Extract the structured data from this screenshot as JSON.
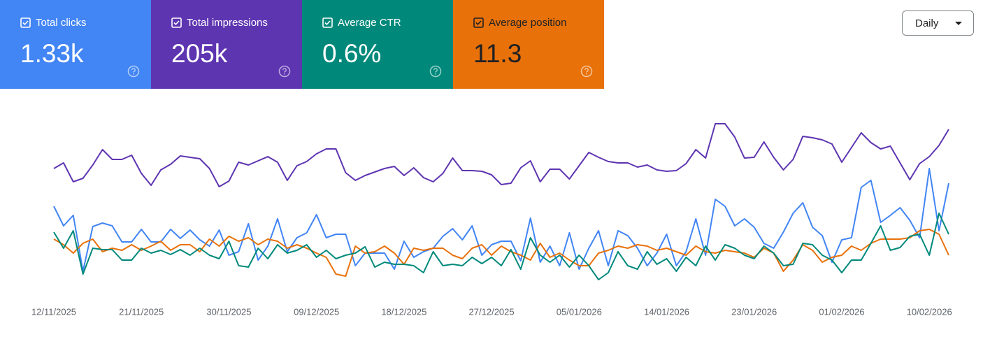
{
  "metrics": [
    {
      "label": "Total clicks",
      "value": "1.33k"
    },
    {
      "label": "Total impressions",
      "value": "205k"
    },
    {
      "label": "Average CTR",
      "value": "0.6%"
    },
    {
      "label": "Average position",
      "value": "11.3"
    }
  ],
  "range_selector": "Daily",
  "chart_data": {
    "type": "line",
    "categories": [
      "12/11/2025",
      null,
      null,
      null,
      null,
      null,
      null,
      null,
      null,
      "21/11/2025",
      null,
      null,
      null,
      null,
      null,
      null,
      null,
      null,
      "30/11/2025",
      null,
      null,
      null,
      null,
      null,
      null,
      null,
      null,
      "09/12/2025",
      null,
      null,
      null,
      null,
      null,
      null,
      null,
      null,
      "18/12/2025",
      null,
      null,
      null,
      null,
      null,
      null,
      null,
      null,
      "27/12/2025",
      null,
      null,
      null,
      null,
      null,
      null,
      null,
      null,
      "05/01/2026",
      null,
      null,
      null,
      null,
      null,
      null,
      null,
      null,
      "14/01/2026",
      null,
      null,
      null,
      null,
      null,
      null,
      null,
      null,
      "23/01/2026",
      null,
      null,
      null,
      null,
      null,
      null,
      null,
      null,
      "01/02/2026",
      null,
      null,
      null,
      null,
      null,
      null,
      null,
      null,
      "10/02/2026",
      null,
      null
    ],
    "ylim": [
      0,
      270
    ],
    "series": [
      {
        "name": "Total impressions",
        "color": "#5e35b1",
        "values": [
          179,
          187,
          160,
          165,
          184,
          206,
          192,
          192,
          198,
          172,
          155,
          177,
          185,
          197,
          195,
          193,
          179,
          153,
          161,
          188,
          184,
          190,
          196,
          188,
          162,
          183,
          189,
          200,
          207,
          207,
          173,
          162,
          169,
          174,
          179,
          182,
          169,
          180,
          166,
          160,
          172,
          194,
          176,
          176,
          175,
          170,
          156,
          158,
          180,
          190,
          160,
          178,
          178,
          164,
          183,
          202,
          195,
          189,
          187,
          187,
          181,
          184,
          177,
          175,
          176,
          186,
          206,
          194,
          243,
          243,
          224,
          194,
          195,
          217,
          195,
          177,
          192,
          225,
          223,
          220,
          214,
          188,
          209,
          230,
          216,
          207,
          211,
          187,
          163,
          186,
          196,
          212,
          235
        ]
      },
      {
        "name": "Total clicks",
        "color": "#4285f4",
        "values": [
          125,
          97,
          112,
          32,
          96,
          101,
          97,
          74,
          74,
          92,
          74,
          74,
          92,
          79,
          91,
          77,
          68,
          91,
          55,
          60,
          100,
          48,
          68,
          107,
          60,
          80,
          87,
          113,
          80,
          85,
          85,
          40,
          58,
          58,
          58,
          35,
          75,
          52,
          60,
          65,
          82,
          93,
          77,
          97,
          55,
          70,
          75,
          75,
          47,
          108,
          45,
          68,
          40,
          87,
          35,
          65,
          90,
          40,
          90,
          83,
          65,
          40,
          58,
          85,
          40,
          60,
          107,
          55,
          135,
          125,
          97,
          107,
          95,
          72,
          65,
          88,
          115,
          130,
          95,
          83,
          45,
          77,
          80,
          152,
          162,
          102,
          112,
          123,
          105,
          80,
          179,
          90,
          158
        ]
      },
      {
        "name": "Average position",
        "color": "#e8710a",
        "values": [
          78,
          70,
          58,
          72,
          78,
          60,
          65,
          62,
          70,
          62,
          68,
          75,
          62,
          70,
          70,
          60,
          78,
          68,
          82,
          75,
          80,
          70,
          78,
          75,
          65,
          70,
          65,
          58,
          52,
          28,
          25,
          68,
          58,
          60,
          68,
          58,
          42,
          65,
          62,
          65,
          65,
          55,
          50,
          65,
          70,
          55,
          68,
          60,
          55,
          48,
          72,
          52,
          58,
          48,
          40,
          40,
          58,
          62,
          68,
          65,
          70,
          68,
          62,
          65,
          60,
          55,
          68,
          60,
          58,
          62,
          60,
          58,
          52,
          65,
          58,
          32,
          48,
          70,
          62,
          45,
          52,
          55,
          68,
          62,
          72,
          78,
          78,
          78,
          80,
          90,
          92,
          85,
          55
        ]
      },
      {
        "name": "Average CTR",
        "color": "#00897b",
        "values": [
          88,
          65,
          90,
          28,
          65,
          63,
          63,
          48,
          48,
          65,
          58,
          62,
          56,
          63,
          55,
          65,
          55,
          50,
          75,
          40,
          38,
          65,
          50,
          70,
          58,
          62,
          70,
          52,
          62,
          50,
          55,
          58,
          67,
          38,
          45,
          42,
          42,
          40,
          30,
          60,
          40,
          42,
          40,
          52,
          43,
          52,
          40,
          63,
          35,
          80,
          55,
          45,
          55,
          38,
          55,
          40,
          20,
          30,
          60,
          40,
          35,
          60,
          42,
          50,
          32,
          52,
          40,
          68,
          48,
          70,
          65,
          55,
          50,
          68,
          58,
          40,
          42,
          72,
          70,
          55,
          48,
          30,
          48,
          48,
          72,
          97,
          62,
          66,
          82,
          85,
          55,
          115,
          85
        ]
      }
    ]
  }
}
